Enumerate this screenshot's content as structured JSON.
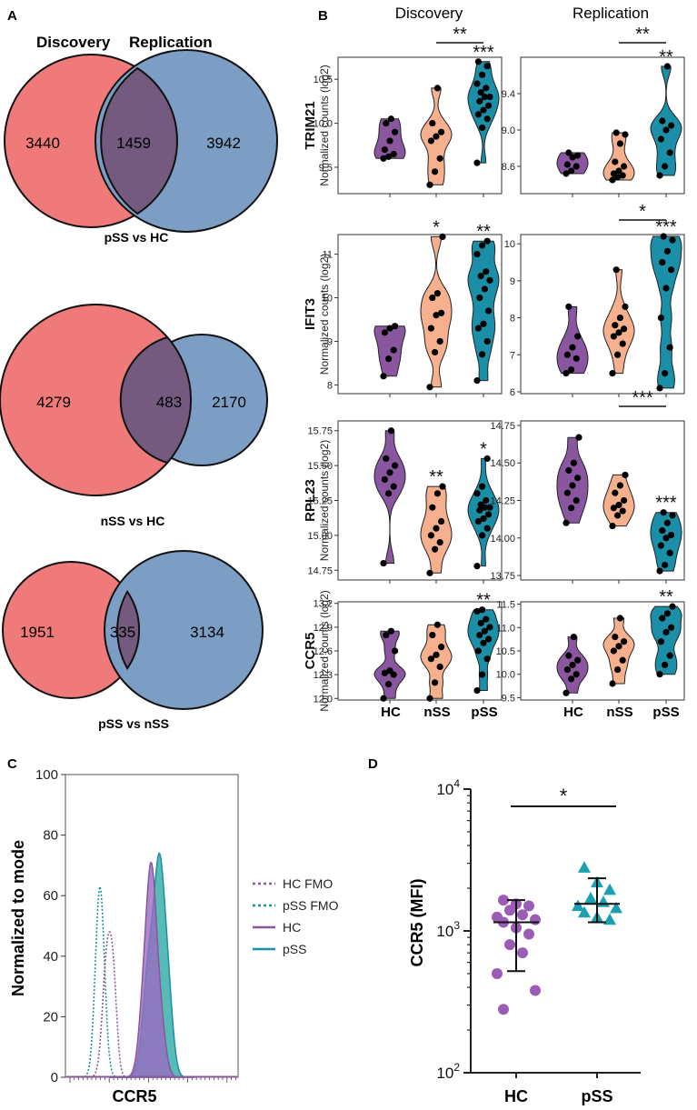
{
  "panel_labels": {
    "A": "A",
    "B": "B",
    "C": "C",
    "D": "D"
  },
  "colors": {
    "discovery_circle": "#f07a7a",
    "replication_circle": "#7c9ec4",
    "overlap": "#735a7e",
    "HC": "#8a56a0",
    "nSS": "#f6b08e",
    "pSS": "#1b8fa8",
    "HC_fill_hist": "#9a6bc2",
    "pSS_fill_hist": "#3ab0a8"
  },
  "panel_a": {
    "header_left": "Discovery",
    "header_right": "Replication",
    "venns": [
      {
        "title": "pSS vs HC",
        "discovery_only": "3440",
        "overlap": "1459",
        "replication_only": "3942"
      },
      {
        "title": "nSS vs HC",
        "discovery_only": "4279",
        "overlap": "483",
        "replication_only": "2170"
      },
      {
        "title": "pSS vs nSS",
        "discovery_only": "1951",
        "overlap": "335",
        "replication_only": "3134"
      }
    ]
  },
  "panel_b": {
    "col_titles": [
      "Discovery",
      "Replication"
    ],
    "ylabel": "Normalized counts (log2)",
    "groups": [
      "HC",
      "nSS",
      "pSS"
    ],
    "genes": [
      "TRIM21",
      "IFIT3",
      "RPL23",
      "CCR5"
    ]
  },
  "chart_data": [
    {
      "type": "violin",
      "panel": "B",
      "gene": "TRIM21",
      "cohort": "Discovery",
      "ylim": [
        9.2,
        10.75
      ],
      "yticks": [
        "9.5",
        "10.0",
        "10.5"
      ],
      "groups": [
        "HC",
        "nSS",
        "pSS"
      ],
      "points": [
        [
          9.6,
          9.62,
          9.65,
          9.7,
          9.8,
          9.9,
          10.0,
          10.05
        ],
        [
          9.3,
          9.45,
          9.6,
          9.8,
          9.85,
          9.9,
          10.0,
          10.4
        ],
        [
          9.55,
          9.95,
          10.05,
          10.1,
          10.15,
          10.2,
          10.25,
          10.3,
          10.3,
          10.35,
          10.4,
          10.45,
          10.55,
          10.65,
          10.7
        ]
      ],
      "sig": [
        "",
        "",
        "***"
      ],
      "bracket": {
        "from": "nSS",
        "to": "pSS",
        "label": "**"
      }
    },
    {
      "type": "violin",
      "panel": "B",
      "gene": "TRIM21",
      "cohort": "Replication",
      "ylim": [
        8.3,
        9.8
      ],
      "yticks": [
        "8.6",
        "9.0",
        "9.4"
      ],
      "groups": [
        "HC",
        "nSS",
        "pSS"
      ],
      "points": [
        [
          8.52,
          8.55,
          8.6,
          8.62,
          8.7,
          8.72,
          8.75
        ],
        [
          8.45,
          8.48,
          8.5,
          8.52,
          8.55,
          8.6,
          8.65,
          8.85,
          8.95,
          8.97
        ],
        [
          8.5,
          8.6,
          8.75,
          8.9,
          9.0,
          9.05,
          9.1,
          9.7
        ]
      ],
      "sig": [
        "",
        "",
        "**"
      ],
      "bracket": {
        "from": "nSS",
        "to": "pSS",
        "label": "**"
      }
    },
    {
      "type": "violin",
      "panel": "B",
      "gene": "IFIT3",
      "cohort": "Discovery",
      "ylim": [
        7.8,
        11.45
      ],
      "yticks": [
        "8",
        "9",
        "10",
        "11"
      ],
      "groups": [
        "HC",
        "nSS",
        "pSS"
      ],
      "points": [
        [
          8.2,
          8.6,
          8.8,
          9.2,
          9.3,
          9.35
        ],
        [
          7.95,
          8.75,
          9.0,
          9.3,
          9.6,
          9.65,
          10.0,
          10.1,
          11.4
        ],
        [
          8.1,
          8.7,
          9.0,
          9.3,
          9.4,
          9.7,
          10.0,
          10.2,
          10.4,
          10.5,
          10.6,
          11.0,
          11.2,
          11.3
        ]
      ],
      "sig": [
        "",
        "*",
        "**"
      ]
    },
    {
      "type": "violin",
      "panel": "B",
      "gene": "IFIT3",
      "cohort": "Replication",
      "ylim": [
        5.95,
        10.25
      ],
      "yticks": [
        "6",
        "7",
        "8",
        "9",
        "10"
      ],
      "groups": [
        "HC",
        "nSS",
        "pSS"
      ],
      "points": [
        [
          6.5,
          6.6,
          6.9,
          7.0,
          7.2,
          7.5,
          8.3
        ],
        [
          6.5,
          7.0,
          7.3,
          7.5,
          7.6,
          7.7,
          7.8,
          8.0,
          8.3,
          9.3
        ],
        [
          6.1,
          6.5,
          7.2,
          8.0,
          8.8,
          9.3,
          9.5,
          9.8,
          10.1,
          10.2
        ]
      ],
      "sig": [
        "",
        "",
        "***"
      ],
      "bracket": {
        "from": "nSS",
        "to": "pSS",
        "label": "*"
      }
    },
    {
      "type": "violin",
      "panel": "B",
      "gene": "RPL23",
      "cohort": "Discovery",
      "ylim": [
        14.68,
        15.82
      ],
      "yticks": [
        "14.75",
        "15.00",
        "15.25",
        "15.50",
        "15.75"
      ],
      "groups": [
        "HC",
        "nSS",
        "pSS"
      ],
      "points": [
        [
          14.8,
          15.3,
          15.35,
          15.4,
          15.45,
          15.5,
          15.55,
          15.75
        ],
        [
          14.73,
          14.9,
          14.95,
          15.0,
          15.05,
          15.1,
          15.2,
          15.3,
          15.35
        ],
        [
          14.78,
          15.0,
          15.05,
          15.1,
          15.12,
          15.15,
          15.18,
          15.2,
          15.2,
          15.22,
          15.25,
          15.3,
          15.35,
          15.55
        ]
      ],
      "sig": [
        "",
        "**",
        "*"
      ]
    },
    {
      "type": "violin",
      "panel": "B",
      "gene": "RPL23",
      "cohort": "Replication",
      "ylim": [
        13.72,
        14.78
      ],
      "yticks": [
        "13.75",
        "14.00",
        "14.25",
        "14.50",
        "14.75"
      ],
      "groups": [
        "HC",
        "nSS",
        "pSS"
      ],
      "points": [
        [
          14.1,
          14.2,
          14.25,
          14.3,
          14.35,
          14.4,
          14.45,
          14.5,
          14.67
        ],
        [
          14.08,
          14.15,
          14.18,
          14.2,
          14.22,
          14.25,
          14.3,
          14.35,
          14.42
        ],
        [
          13.78,
          13.82,
          13.9,
          13.95,
          14.0,
          14.02,
          14.05,
          14.1,
          14.15,
          14.17
        ]
      ],
      "sig": [
        "",
        "",
        "***"
      ],
      "bracket": {
        "from": "nSS",
        "to": "pSS",
        "label": "***"
      }
    },
    {
      "type": "violin",
      "panel": "B",
      "gene": "CCR5",
      "cohort": "Discovery",
      "ylim": [
        11.98,
        13.22
      ],
      "yticks": [
        "12.0",
        "12.3",
        "12.6",
        "12.9",
        "13.2"
      ],
      "groups": [
        "HC",
        "nSS",
        "pSS"
      ],
      "points": [
        [
          12.0,
          12.18,
          12.3,
          12.32,
          12.35,
          12.6,
          12.8,
          12.85
        ],
        [
          12.0,
          12.2,
          12.4,
          12.5,
          12.55,
          12.65,
          12.8,
          12.93
        ],
        [
          12.1,
          12.3,
          12.5,
          12.6,
          12.7,
          12.75,
          12.8,
          12.85,
          12.9,
          12.95,
          13.0,
          13.1,
          13.12
        ]
      ],
      "sig": [
        "",
        "",
        "**"
      ]
    },
    {
      "type": "violin",
      "panel": "B",
      "gene": "CCR5",
      "cohort": "Replication",
      "ylim": [
        9.45,
        11.55
      ],
      "yticks": [
        "9.5",
        "10.0",
        "10.5",
        "11.0",
        "11.5"
      ],
      "groups": [
        "HC",
        "nSS",
        "pSS"
      ],
      "points": [
        [
          9.6,
          9.9,
          10.0,
          10.1,
          10.2,
          10.3,
          10.4,
          10.8
        ],
        [
          9.8,
          10.1,
          10.3,
          10.5,
          10.6,
          10.7,
          10.8,
          11.2
        ],
        [
          10.0,
          10.2,
          10.4,
          10.7,
          10.9,
          11.0,
          11.2,
          11.3,
          11.45
        ]
      ],
      "sig": [
        "",
        "",
        "**"
      ]
    },
    {
      "type": "histogram_overlay",
      "panel": "C",
      "ylabel": "Normalized to mode",
      "xlabel": "CCR5",
      "ylim": [
        0,
        100
      ],
      "yticks": [
        "0",
        "20",
        "40",
        "60",
        "80",
        "100"
      ],
      "legend": [
        "HC FMO",
        "pSS FMO",
        "HC",
        "pSS"
      ],
      "peaks": {
        "HC FMO": 48,
        "pSS FMO": 63,
        "HC": 71,
        "pSS": 74
      }
    },
    {
      "type": "scatter_dot",
      "panel": "D",
      "ylabel": "CCR5 (MFI)",
      "yscale": "log",
      "ylim_exp": [
        2,
        4
      ],
      "ytick_base": "10",
      "ytick_exps": [
        "2",
        "3",
        "4"
      ],
      "groups": [
        "HC",
        "pSS"
      ],
      "points": [
        [
          1650,
          1550,
          1500,
          1400,
          1300,
          1250,
          1200,
          1150,
          1050,
          950,
          800,
          700,
          500,
          380,
          280
        ],
        [
          2800,
          2200,
          1950,
          1700,
          1600,
          1500,
          1450,
          1350,
          1250,
          1200
        ]
      ],
      "center": [
        1150,
        1550
      ],
      "error_low": [
        520,
        1150
      ],
      "error_high": [
        1650,
        2350
      ],
      "bracket_label": "*"
    }
  ]
}
